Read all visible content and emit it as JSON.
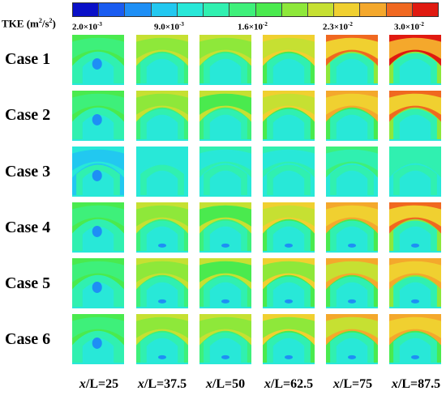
{
  "colorbar": {
    "title_main": "TKE (m",
    "title_sup": "2",
    "title_mid": "/s",
    "title_sup2": "2",
    "title_end": ")",
    "colors": [
      "#0a10c8",
      "#1a5cf0",
      "#1e8ff5",
      "#22c8f0",
      "#28e8d8",
      "#30f0b0",
      "#3ef07a",
      "#4aea4e",
      "#8ee83a",
      "#c6e032",
      "#f0d030",
      "#f4a82c",
      "#f06820",
      "#e01a10"
    ],
    "ticks": [
      {
        "mantissa": "2.0×10",
        "exp": "-3"
      },
      {
        "mantissa": "9.0×10",
        "exp": "-3"
      },
      {
        "mantissa": "1.6×10",
        "exp": "-2"
      },
      {
        "mantissa": "2.3×10",
        "exp": "-2"
      },
      {
        "mantissa": "3.0×10",
        "exp": "-2"
      }
    ]
  },
  "rows": [
    {
      "label": "Case 1"
    },
    {
      "label": "Case 2"
    },
    {
      "label": "Case 3"
    },
    {
      "label": "Case 4"
    },
    {
      "label": "Case 5"
    },
    {
      "label": "Case 6"
    }
  ],
  "columns": [
    {
      "var": "x",
      "rest": "/L=25"
    },
    {
      "var": "x",
      "rest": "/L=37.5"
    },
    {
      "var": "x",
      "rest": "/L=50"
    },
    {
      "var": "x",
      "rest": "/L=62.5"
    },
    {
      "var": "x",
      "rest": "/L=75"
    },
    {
      "var": "x",
      "rest": "/L=87.5"
    }
  ]
}
